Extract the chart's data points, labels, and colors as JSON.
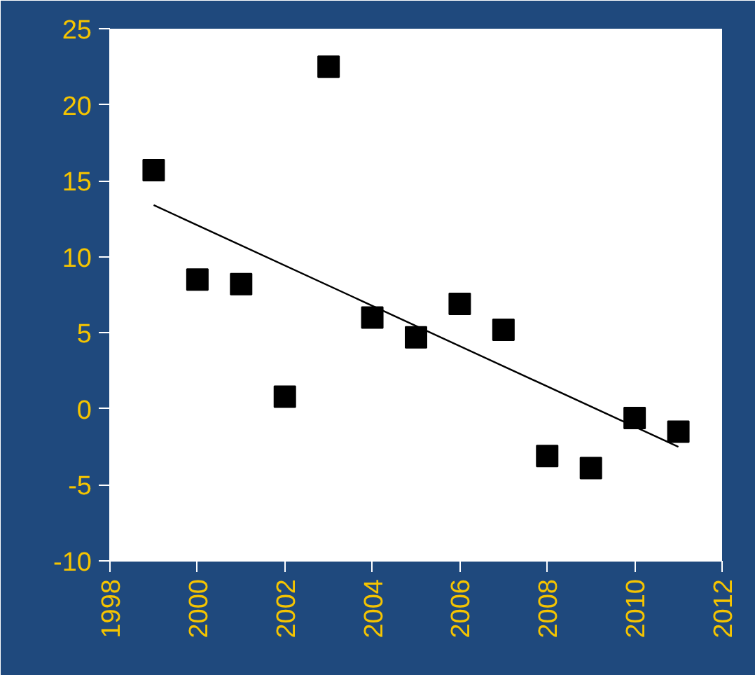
{
  "chart_data": {
    "type": "scatter",
    "grid": false,
    "xlim": [
      1998,
      2012
    ],
    "xticks": [
      1998,
      2000,
      2002,
      2004,
      2006,
      2008,
      2010,
      2012
    ],
    "ylim": [
      -10,
      25
    ],
    "yticks": [
      -10,
      -5,
      0,
      5,
      10,
      15,
      20,
      25
    ],
    "series": [
      {
        "marker": "square",
        "color": "#000000",
        "x": [
          1999,
          2000,
          2001,
          2002,
          2003,
          2004,
          2005,
          2006,
          2007,
          2008,
          2009,
          2010,
          2011
        ],
        "values": [
          15.7,
          8.5,
          8.2,
          0.8,
          22.5,
          6.0,
          4.7,
          6.9,
          5.2,
          -3.1,
          -3.9,
          -0.6,
          -1.5
        ]
      },
      {
        "type": "line",
        "marker": "none",
        "color": "#000000",
        "x": [
          1999,
          2011
        ],
        "values": [
          13.4,
          -2.5
        ]
      }
    ]
  }
}
